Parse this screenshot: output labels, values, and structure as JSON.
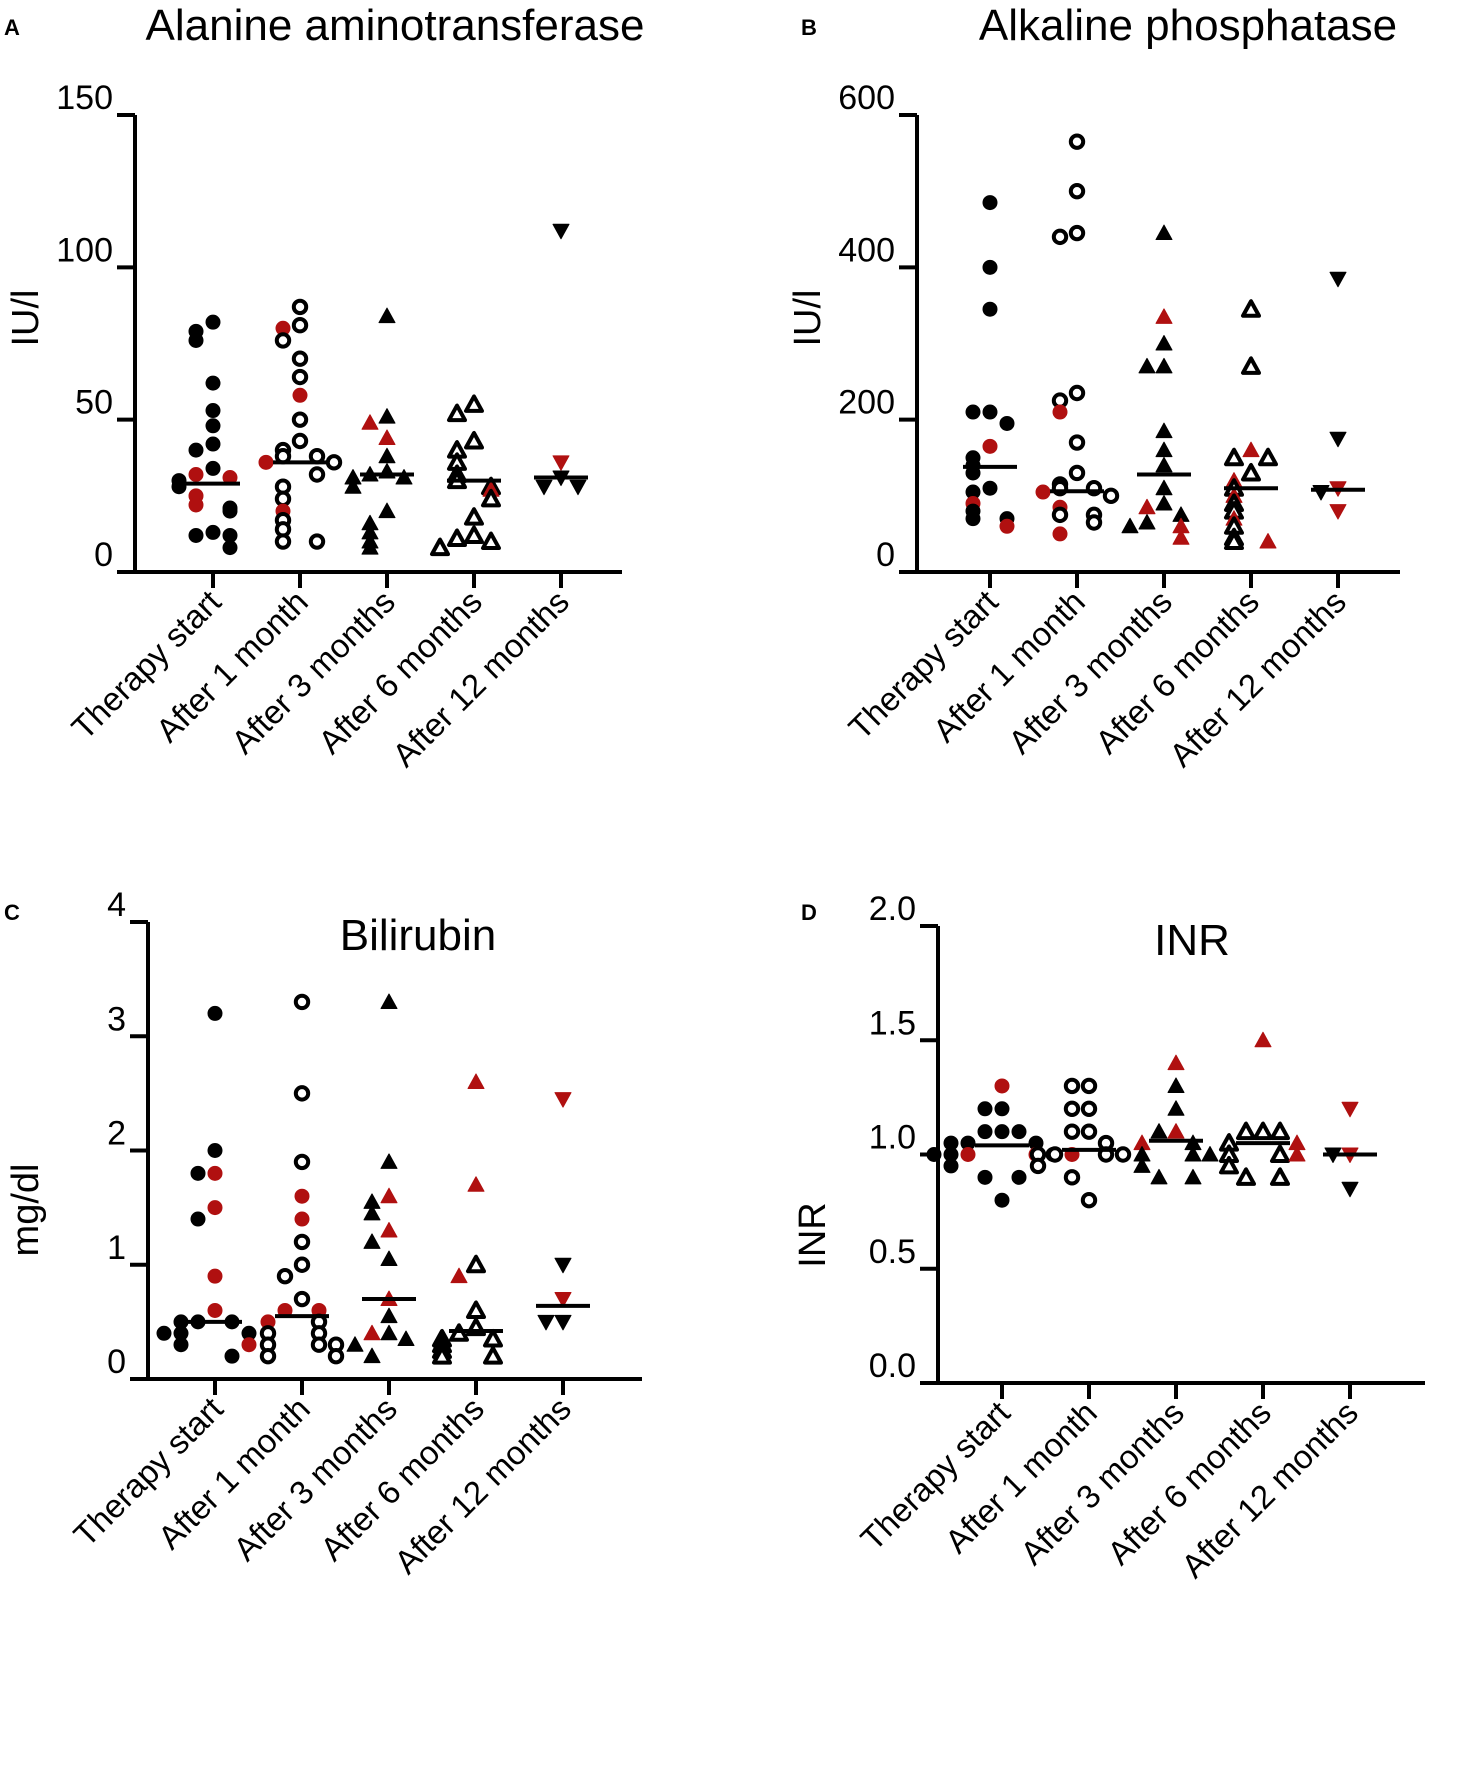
{
  "colors": {
    "black": "#000000",
    "red": "#b01010",
    "white": "#ffffff"
  },
  "categories": [
    "Therapy start",
    "After 1 month",
    "After 3 months",
    "After 6 months",
    "After 12 months"
  ],
  "marker_styles": [
    {
      "shape": "circle",
      "fill": "filled"
    },
    {
      "shape": "circle",
      "fill": "open"
    },
    {
      "shape": "triangle-up",
      "fill": "filled"
    },
    {
      "shape": "triangle-up",
      "fill": "open"
    },
    {
      "shape": "triangle-down",
      "fill": "filled"
    }
  ],
  "chart_data": [
    {
      "panel": "A",
      "type": "scatter",
      "title": "Alanine aminotransferase",
      "ylabel": "IU/l",
      "ylim": [
        0,
        150
      ],
      "yticks": [
        0,
        50,
        100,
        150
      ],
      "ytick_labels": [
        "0",
        "50",
        "100",
        "150"
      ],
      "medians": [
        29,
        36,
        32,
        30,
        31
      ],
      "series": [
        {
          "name": "Therapy start",
          "values": [
            82,
            79,
            76,
            62,
            53,
            48,
            42,
            40,
            34,
            32,
            31,
            30,
            28,
            25,
            22,
            21,
            20,
            13,
            12,
            12,
            8
          ],
          "red": [
            0,
            0,
            0,
            0,
            0,
            0,
            0,
            0,
            0,
            1,
            1,
            0,
            0,
            1,
            1,
            0,
            0,
            0,
            0,
            0,
            0
          ]
        },
        {
          "name": "After 1 month",
          "values": [
            87,
            81,
            80,
            76,
            70,
            64,
            58,
            50,
            43,
            40,
            38,
            38,
            36,
            36,
            32,
            28,
            24,
            20,
            17,
            14,
            10,
            10
          ],
          "red": [
            0,
            0,
            1,
            0,
            0,
            0,
            1,
            0,
            0,
            0,
            0,
            0,
            1,
            0,
            0,
            0,
            0,
            1,
            0,
            0,
            0,
            0
          ]
        },
        {
          "name": "After 3 months",
          "values": [
            84,
            51,
            49,
            44,
            38,
            33,
            32,
            31,
            31,
            28,
            20,
            16,
            13,
            10,
            8
          ],
          "red": [
            0,
            0,
            1,
            1,
            0,
            0,
            0,
            0,
            0,
            0,
            0,
            0,
            0,
            0,
            0
          ]
        },
        {
          "name": "After 6 months",
          "values": [
            55,
            52,
            43,
            40,
            36,
            32,
            30,
            28,
            27,
            24,
            18,
            12,
            11,
            10,
            8
          ],
          "red": [
            0,
            0,
            0,
            0,
            0,
            0,
            0,
            0,
            1,
            0,
            0,
            0,
            0,
            0,
            0
          ]
        },
        {
          "name": "After 12 months",
          "values": [
            112,
            36,
            31,
            28,
            28
          ],
          "red": [
            0,
            1,
            0,
            0,
            0
          ]
        }
      ]
    },
    {
      "panel": "B",
      "type": "scatter",
      "title": "Alkaline phosphatase",
      "ylabel": "IU/l",
      "ylim": [
        0,
        600
      ],
      "yticks": [
        0,
        200,
        400,
        600
      ],
      "ytick_labels": [
        "0",
        "200",
        "400",
        "600"
      ],
      "medians": [
        138,
        106,
        128,
        110,
        108
      ],
      "series": [
        {
          "name": "Therapy start",
          "values": [
            485,
            400,
            345,
            210,
            210,
            195,
            165,
            150,
            140,
            130,
            110,
            105,
            90,
            80,
            70,
            70,
            60
          ],
          "red": [
            0,
            0,
            0,
            0,
            0,
            0,
            1,
            0,
            0,
            0,
            0,
            0,
            1,
            0,
            0,
            0,
            1
          ]
        },
        {
          "name": "After 1 month",
          "values": [
            565,
            500,
            445,
            440,
            235,
            225,
            210,
            170,
            130,
            115,
            110,
            110,
            105,
            100,
            85,
            75,
            75,
            65,
            50
          ],
          "red": [
            0,
            0,
            0,
            0,
            0,
            0,
            1,
            0,
            0,
            0,
            0,
            0,
            1,
            0,
            1,
            0,
            0,
            0,
            1
          ]
        },
        {
          "name": "After 3 months",
          "values": [
            445,
            335,
            300,
            270,
            270,
            185,
            160,
            140,
            110,
            90,
            85,
            75,
            65,
            60,
            60,
            45
          ],
          "red": [
            0,
            1,
            0,
            0,
            0,
            0,
            0,
            0,
            0,
            0,
            1,
            0,
            0,
            1,
            0,
            1
          ]
        },
        {
          "name": "After 6 months",
          "values": [
            345,
            270,
            160,
            150,
            150,
            130,
            120,
            110,
            100,
            90,
            80,
            70,
            60,
            45,
            40,
            40
          ],
          "red": [
            0,
            0,
            1,
            0,
            0,
            0,
            1,
            0,
            1,
            0,
            0,
            1,
            0,
            0,
            0,
            1
          ]
        },
        {
          "name": "After 12 months",
          "values": [
            385,
            175,
            110,
            105,
            80
          ],
          "red": [
            0,
            0,
            1,
            0,
            1
          ]
        }
      ]
    },
    {
      "panel": "C",
      "type": "scatter",
      "title": "Bilirubin",
      "ylabel": "mg/dl",
      "ylim": [
        0,
        4
      ],
      "yticks": [
        0,
        1,
        2,
        3,
        4
      ],
      "ytick_labels": [
        "0",
        "1",
        "2",
        "3",
        "4"
      ],
      "medians": [
        0.5,
        0.55,
        0.7,
        0.42,
        0.64
      ],
      "series": [
        {
          "name": "Therapy start",
          "values": [
            3.2,
            2.0,
            1.8,
            1.8,
            1.5,
            1.4,
            0.9,
            0.6,
            0.5,
            0.5,
            0.5,
            0.4,
            0.4,
            0.4,
            0.3,
            0.3,
            0.2
          ],
          "red": [
            0,
            0,
            1,
            0,
            1,
            0,
            1,
            1,
            0,
            0,
            0,
            0,
            0,
            0,
            0,
            1,
            0
          ]
        },
        {
          "name": "After 1 month",
          "values": [
            3.3,
            2.5,
            1.9,
            1.6,
            1.4,
            1.2,
            1.0,
            0.9,
            0.7,
            0.6,
            0.6,
            0.5,
            0.5,
            0.4,
            0.4,
            0.3,
            0.3,
            0.3,
            0.2,
            0.2
          ],
          "red": [
            0,
            0,
            0,
            1,
            1,
            0,
            0,
            0,
            0,
            1,
            1,
            0,
            1,
            0,
            0,
            0,
            0,
            0,
            0,
            0
          ]
        },
        {
          "name": "After 3 months",
          "values": [
            3.3,
            1.9,
            1.6,
            1.55,
            1.45,
            1.3,
            1.2,
            1.05,
            0.7,
            0.55,
            0.4,
            0.4,
            0.35,
            0.3,
            0.2
          ],
          "red": [
            0,
            0,
            1,
            0,
            0,
            1,
            0,
            0,
            1,
            0,
            0,
            1,
            0,
            0,
            0
          ]
        },
        {
          "name": "After 6 months",
          "values": [
            2.6,
            1.7,
            1.0,
            0.9,
            0.6,
            0.45,
            0.4,
            0.35,
            0.35,
            0.3,
            0.25,
            0.2,
            0.2
          ],
          "red": [
            1,
            1,
            0,
            1,
            0,
            0,
            0,
            0,
            0,
            0,
            0,
            0,
            0
          ]
        },
        {
          "name": "After 12 months",
          "values": [
            2.45,
            1.0,
            0.7,
            0.5,
            0.5
          ],
          "red": [
            1,
            0,
            1,
            0,
            0
          ]
        }
      ]
    },
    {
      "panel": "D",
      "type": "scatter",
      "title": "INR",
      "ylabel": "INR",
      "ylim": [
        0.0,
        2.0
      ],
      "yticks": [
        0.0,
        0.5,
        1.0,
        1.5,
        2.0
      ],
      "ytick_labels": [
        "0.0",
        "0.5",
        "1.0",
        "1.5",
        "2.0"
      ],
      "medians": [
        1.04,
        1.02,
        1.06,
        1.05,
        1.0
      ],
      "series": [
        {
          "name": "Therapy start",
          "values": [
            1.3,
            1.2,
            1.2,
            1.1,
            1.1,
            1.1,
            1.05,
            1.05,
            1.05,
            1.0,
            1.0,
            1.0,
            1.0,
            1.0,
            0.95,
            0.9,
            0.9,
            0.8
          ],
          "red": [
            1,
            0,
            0,
            0,
            0,
            0,
            0,
            0,
            0,
            1,
            1,
            0,
            0,
            0,
            0,
            0,
            0,
            0
          ]
        },
        {
          "name": "After 1 month",
          "values": [
            1.3,
            1.3,
            1.2,
            1.2,
            1.1,
            1.1,
            1.05,
            1.0,
            1.0,
            1.0,
            1.0,
            1.0,
            0.95,
            0.9,
            0.8
          ],
          "red": [
            0,
            0,
            0,
            0,
            0,
            0,
            0,
            1,
            0,
            0,
            0,
            0,
            0,
            0,
            0
          ]
        },
        {
          "name": "After 3 months",
          "values": [
            1.4,
            1.3,
            1.2,
            1.1,
            1.1,
            1.05,
            1.05,
            1.0,
            1.0,
            1.0,
            0.95,
            0.9,
            0.9
          ],
          "red": [
            1,
            0,
            0,
            1,
            0,
            0,
            1,
            0,
            0,
            0,
            0,
            0,
            0
          ]
        },
        {
          "name": "After 6 months",
          "values": [
            1.5,
            1.1,
            1.1,
            1.1,
            1.05,
            1.05,
            1.0,
            1.0,
            1.0,
            0.95,
            0.9,
            0.9
          ],
          "red": [
            1,
            0,
            0,
            0,
            0,
            1,
            0,
            0,
            1,
            0,
            0,
            0
          ]
        },
        {
          "name": "After 12 months",
          "values": [
            1.2,
            1.0,
            1.0,
            0.85
          ],
          "red": [
            1,
            1,
            0,
            0
          ]
        }
      ]
    }
  ]
}
